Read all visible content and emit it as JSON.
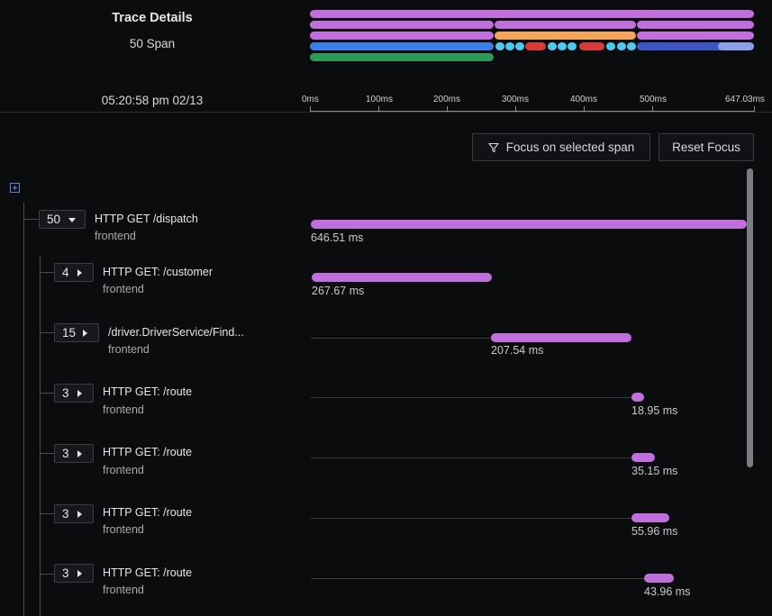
{
  "trace": {
    "title": "Trace Details",
    "span_count": "50 Span",
    "time": "05:20:58 pm 02/13"
  },
  "timeline": {
    "ticks": [
      "0ms",
      "100ms",
      "200ms",
      "300ms",
      "400ms",
      "500ms",
      "647.03ms"
    ]
  },
  "toolbar": {
    "focus_label": "Focus on selected span",
    "reset_label": "Reset Focus"
  },
  "colors": {
    "purple": "#c06fdc",
    "orange": "#f3a65a",
    "blue": "#3a7fe8",
    "cyan": "#4dc9f0",
    "red": "#d93b3b",
    "indigo": "#3f55c4",
    "light_indigo": "#8c9fe8",
    "green": "#2e9a5a"
  },
  "spans": [
    {
      "count": "50",
      "name": "HTTP GET /dispatch",
      "service": "frontend",
      "duration": "646.51 ms"
    },
    {
      "count": "4",
      "name": "HTTP GET: /customer",
      "service": "frontend",
      "duration": "267.67 ms"
    },
    {
      "count": "15",
      "name": "/driver.DriverService/Find...",
      "service": "frontend",
      "duration": "207.54 ms"
    },
    {
      "count": "3",
      "name": "HTTP GET: /route",
      "service": "frontend",
      "duration": "18.95 ms"
    },
    {
      "count": "3",
      "name": "HTTP GET: /route",
      "service": "frontend",
      "duration": "35.15 ms"
    },
    {
      "count": "3",
      "name": "HTTP GET: /route",
      "service": "frontend",
      "duration": "55.96 ms"
    },
    {
      "count": "3",
      "name": "HTTP GET: /route",
      "service": "frontend",
      "duration": "43.96 ms"
    }
  ]
}
